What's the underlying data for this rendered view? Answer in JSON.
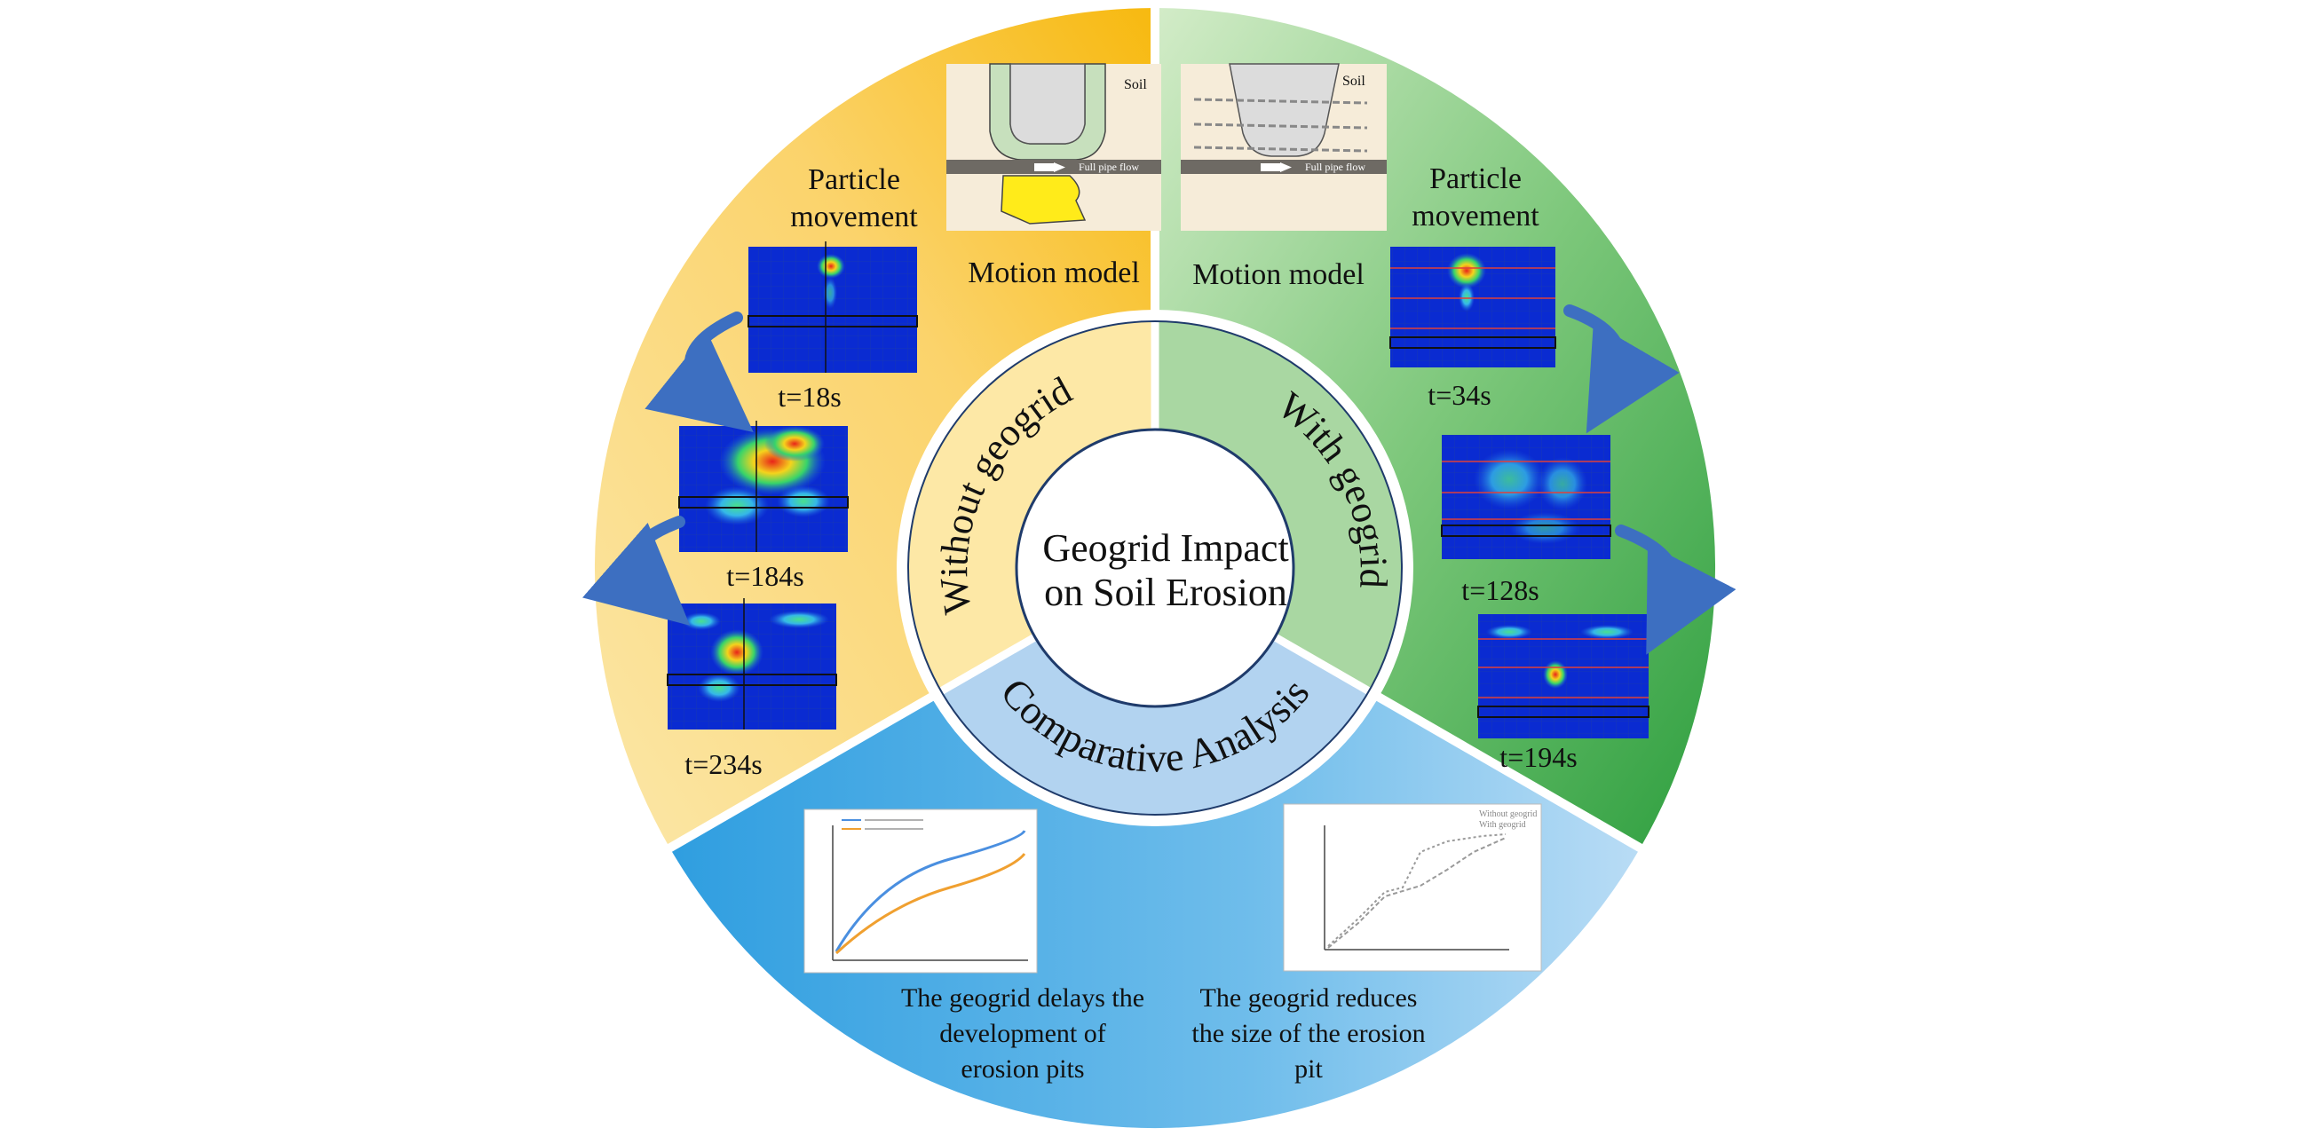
{
  "center": {
    "line1": "Geogrid Impact",
    "line2": "on Soil Erosion"
  },
  "ring": {
    "without": "Without geogrid",
    "with": "With geogrid",
    "comparative": "Comparative Analysis"
  },
  "left": {
    "particle_line1": "Particle",
    "particle_line2": "movement",
    "motion_model": "Motion model",
    "soil_label": "Soil",
    "flow_label": "Full pipe flow",
    "frames": [
      {
        "label": "t=18s"
      },
      {
        "label": "t=184s"
      },
      {
        "label": "t=234s"
      }
    ]
  },
  "right": {
    "particle_line1": "Particle",
    "particle_line2": "movement",
    "motion_model": "Motion model",
    "soil_label": "Soil",
    "flow_label": "Full pipe flow",
    "frames": [
      {
        "label": "t=34s"
      },
      {
        "label": "t=128s"
      },
      {
        "label": "t=194s"
      }
    ]
  },
  "bottom": {
    "left_caption": [
      "The geogrid delays the",
      "development of",
      "erosion pits"
    ],
    "right_caption": [
      "The geogrid reduces",
      "the size of the erosion",
      "pit"
    ],
    "right_plot_legend": [
      "Without geogrid",
      "With geogrid"
    ]
  },
  "colors": {
    "left_sector": "#f9c22e",
    "right_sector": "#43b04a",
    "bottom_sector": "#3ea6e2",
    "ring_left": "#fde8a6",
    "ring_right": "#a9d7a2",
    "ring_bottom": "#b2d3f0",
    "arrow": "#3d6fc1",
    "heatmap_bg": "#0a2bd1"
  }
}
